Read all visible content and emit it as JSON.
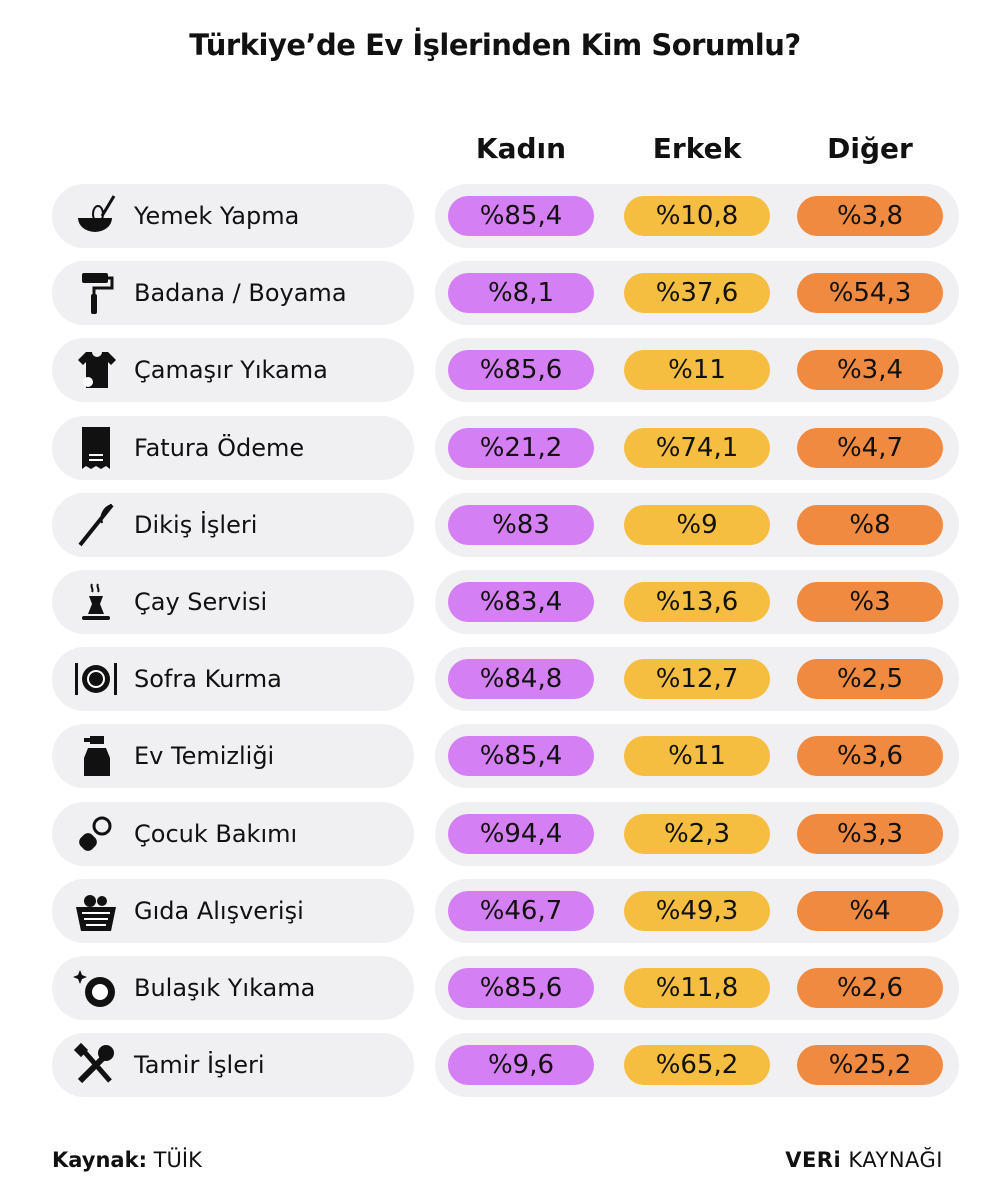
{
  "header": {
    "title": "Türkiye’de Ev İşlerinden Kim Sorumlu?"
  },
  "table": {
    "columns": [
      "Kadın",
      "Erkek",
      "Diğer"
    ],
    "rows": [
      {
        "label": "Yemek Yapma",
        "cells": [
          "%85,4",
          "%10,8",
          "%3,8"
        ]
      },
      {
        "label": "Badana / Boyama",
        "cells": [
          "%8,1",
          "%37,6",
          "%54,3"
        ]
      },
      {
        "label": "Çamaşır Yıkama",
        "cells": [
          "%85,6",
          "%11",
          "%3,4"
        ]
      },
      {
        "label": "Fatura Ödeme",
        "cells": [
          "%21,2",
          "%74,1",
          "%4,7"
        ]
      },
      {
        "label": "Dikiş İşleri",
        "cells": [
          "%83",
          "%9",
          "%8"
        ]
      },
      {
        "label": "Çay Servisi",
        "cells": [
          "%83,4",
          "%13,6",
          "%3"
        ]
      },
      {
        "label": "Sofra Kurma",
        "cells": [
          "%84,8",
          "%12,7",
          "%2,5"
        ]
      },
      {
        "label": "Ev Temizliği",
        "cells": [
          "%85,4",
          "%11",
          "%3,6"
        ]
      },
      {
        "label": "Çocuk Bakımı",
        "cells": [
          "%94,4",
          "%2,3",
          "%3,3"
        ]
      },
      {
        "label": "Gıda Alışverişi",
        "cells": [
          "%46,7",
          "%49,3",
          "%4"
        ]
      },
      {
        "label": "Bulaşık Yıkama",
        "cells": [
          "%85,6",
          "%11,8",
          "%2,6"
        ]
      },
      {
        "label": "Tamir İşleri",
        "cells": [
          "%9,6",
          "%65,2",
          "%25,2"
        ]
      }
    ]
  },
  "footer": {
    "source_label": "Kaynak:",
    "source": "TÜİK",
    "brand_bold": "VERi",
    "brand_rest": "KAYNAĞI"
  }
}
